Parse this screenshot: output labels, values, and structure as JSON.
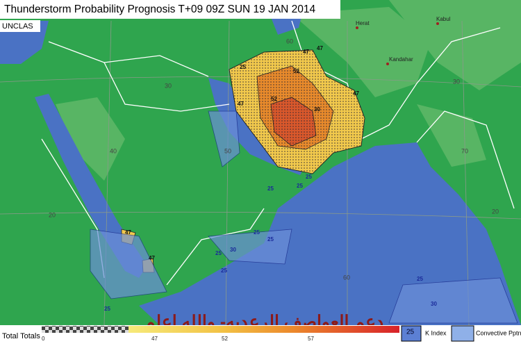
{
  "header": {
    "title": "Thunderstorm Probability Prognosis T+09 09Z SUN 19 JAN 2014",
    "classification": "UNCLAS"
  },
  "cities": [
    "Herat",
    "Kabul",
    "Kandahar"
  ],
  "grid_labels": [
    "30",
    "30",
    "20",
    "20",
    "40",
    "50",
    "60",
    "70",
    "60"
  ],
  "contour_labels": [
    "47",
    "47",
    "25",
    "52",
    "47",
    "47",
    "52",
    "30",
    "25",
    "25",
    "25",
    "30",
    "25",
    "47",
    "47",
    "25",
    "25",
    "25",
    "25",
    "30",
    "25"
  ],
  "overlay_text": "دعم العواصف الرعديه- والله اعلم",
  "legend": {
    "title": "Total Totals",
    "scale": [
      "0",
      "47",
      "52",
      "57"
    ],
    "k_index_value": "25",
    "k_index": "K Index",
    "convective": "Convective Pptn"
  }
}
